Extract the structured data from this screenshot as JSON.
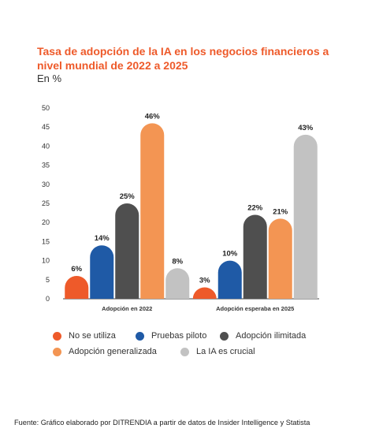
{
  "chart_data": {
    "type": "bar",
    "title": "Tasa de adopción de la IA en los negocios financieros a nivel  mundial de 2022 a 2025",
    "subtitle": "En %",
    "categories": [
      "Adopción en 2022",
      "Adopción esperaba en 2025"
    ],
    "series": [
      {
        "name": "No se utiliza",
        "color": "#ee5a2a",
        "values": [
          6,
          3
        ],
        "labels": [
          "6%",
          "3%"
        ]
      },
      {
        "name": "Pruebas piloto",
        "color": "#1f5aa6",
        "values": [
          14,
          10
        ],
        "labels": [
          "14%",
          "10%"
        ]
      },
      {
        "name": "Adopción ilimitada",
        "color": "#4f4f4f",
        "values": [
          25,
          22
        ],
        "labels": [
          "25%",
          "22%"
        ]
      },
      {
        "name": "Adopción generalizada",
        "color": "#f39553",
        "values": [
          46,
          21
        ],
        "labels": [
          "46%",
          "21%"
        ]
      },
      {
        "name": "La IA es crucial",
        "color": "#c2c2c2",
        "values": [
          8,
          43
        ],
        "labels": [
          "8%",
          "43%"
        ]
      }
    ],
    "ylim": [
      0,
      50
    ],
    "yticks": [
      "0",
      "5",
      "10",
      "15",
      "20",
      "25",
      "30",
      "35",
      "40",
      "45",
      "50"
    ],
    "grid": false,
    "legend_position": "bottom"
  },
  "source": "Fuente: Gráfico elaborado por DITRENDIA a partir de datos de Insider Intelligence y Statista"
}
